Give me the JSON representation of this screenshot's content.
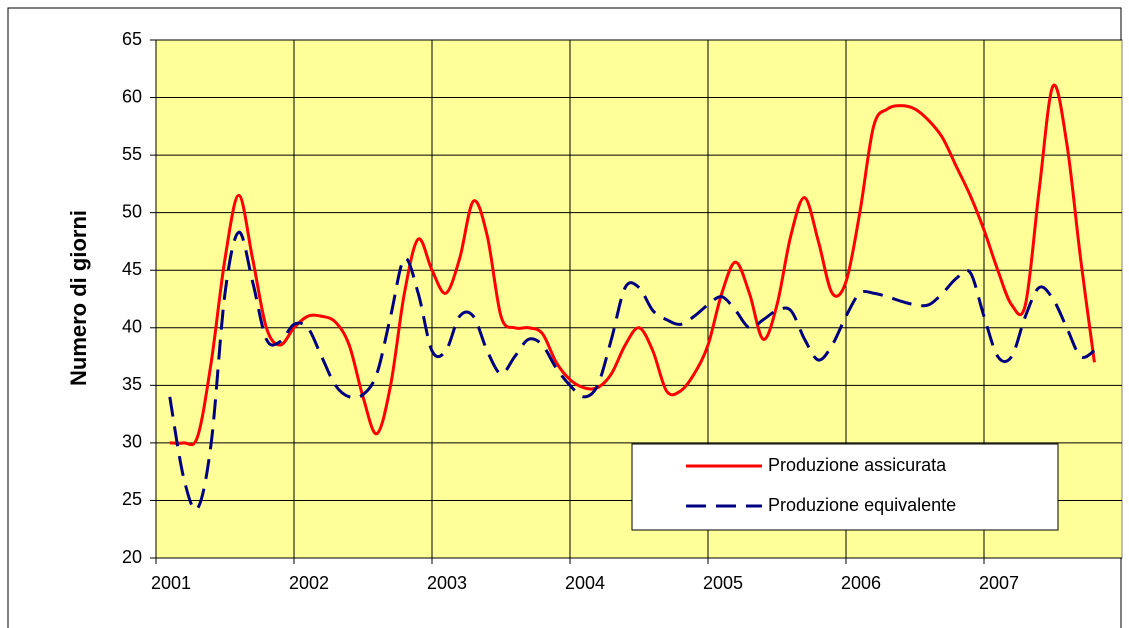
{
  "chart_data": {
    "type": "line",
    "y_label": "Numero di giorni",
    "x": [
      2001.1,
      2001.2,
      2001.3,
      2001.4,
      2001.5,
      2001.6,
      2001.7,
      2001.8,
      2001.9,
      2002.0,
      2002.1,
      2002.2,
      2002.3,
      2002.4,
      2002.5,
      2002.6,
      2002.7,
      2002.8,
      2002.9,
      2003.0,
      2003.1,
      2003.2,
      2003.3,
      2003.4,
      2003.5,
      2003.6,
      2003.7,
      2003.8,
      2003.9,
      2004.0,
      2004.1,
      2004.2,
      2004.3,
      2004.4,
      2004.5,
      2004.6,
      2004.7,
      2004.8,
      2004.9,
      2005.0,
      2005.1,
      2005.2,
      2005.3,
      2005.4,
      2005.5,
      2005.6,
      2005.7,
      2005.8,
      2005.9,
      2006.0,
      2006.1,
      2006.2,
      2006.3,
      2006.4,
      2006.5,
      2006.6,
      2006.7,
      2006.8,
      2006.9,
      2007.0,
      2007.1,
      2007.2,
      2007.3,
      2007.4,
      2007.5,
      2007.6,
      2007.7,
      2007.8
    ],
    "series": [
      {
        "name": "Produzione assicurata",
        "color": "#ff0000",
        "dash": false,
        "values": [
          30,
          30,
          30.5,
          37,
          46,
          51.5,
          46,
          40,
          38.5,
          40,
          41,
          41,
          40.5,
          38.5,
          34,
          30.8,
          35,
          43,
          47.7,
          45,
          43,
          46,
          51,
          48,
          41,
          40,
          40,
          39.5,
          37,
          35.5,
          34.8,
          34.8,
          36,
          38.5,
          40,
          38,
          34.5,
          34.5,
          36,
          38.5,
          43,
          45.7,
          43,
          39,
          42,
          48,
          51.3,
          47.5,
          43,
          44,
          50,
          57.5,
          59,
          59.3,
          59,
          58,
          56.5,
          54,
          51.5,
          48.5,
          45,
          42,
          42,
          52,
          61,
          56,
          46,
          37
        ]
      },
      {
        "name": "Produzione equivalente",
        "color": "#000080",
        "dash": true,
        "values": [
          34,
          27,
          24.3,
          30,
          43,
          48.3,
          44,
          39,
          38.8,
          40.3,
          40,
          37.5,
          35,
          34,
          34.2,
          36,
          41,
          46,
          43,
          38,
          38,
          41,
          41,
          38,
          36,
          37.5,
          39,
          38.5,
          36.5,
          35,
          34,
          35,
          39,
          43.5,
          43.5,
          41.5,
          40.7,
          40.3,
          41,
          42,
          42.7,
          41.5,
          40,
          40.7,
          41.5,
          41.5,
          39,
          37.2,
          38.5,
          41,
          43,
          43,
          42.7,
          42.3,
          42,
          42,
          43,
          44.3,
          44.8,
          41,
          37.5,
          37.5,
          41,
          43.5,
          42.5,
          40,
          37.5,
          38
        ]
      }
    ],
    "xlim": [
      2001,
      2008
    ],
    "xticks": [
      2001,
      2002,
      2003,
      2004,
      2005,
      2006,
      2007
    ],
    "ylim": [
      20,
      65
    ],
    "yticks": [
      20,
      25,
      30,
      35,
      40,
      45,
      50,
      55,
      60,
      65
    ],
    "grid": true,
    "background": "#ffff99",
    "legend": "lower right"
  }
}
